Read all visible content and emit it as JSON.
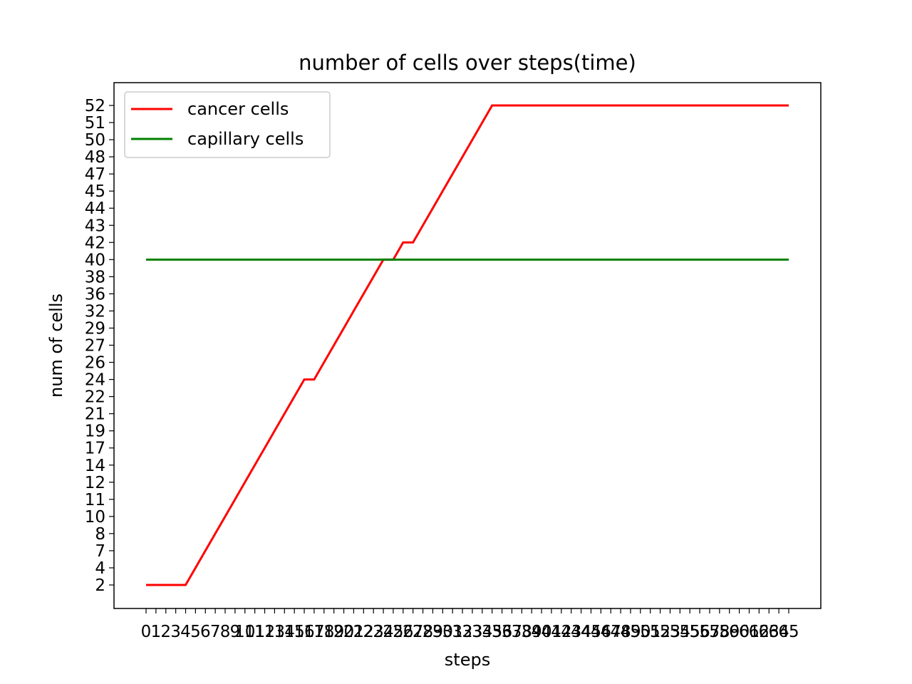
{
  "chart_data": {
    "type": "line",
    "title": "number of cells over steps(time)",
    "xlabel": "steps",
    "ylabel": "num of cells",
    "x": [
      0,
      1,
      2,
      3,
      4,
      5,
      6,
      7,
      8,
      9,
      10,
      11,
      12,
      13,
      14,
      15,
      16,
      17,
      18,
      19,
      20,
      21,
      22,
      23,
      24,
      25,
      26,
      27,
      28,
      29,
      30,
      31,
      32,
      33,
      34,
      35,
      36,
      37,
      38,
      39,
      40,
      41,
      42,
      43,
      44,
      45,
      46,
      47,
      48,
      49,
      50,
      51,
      52,
      53,
      54,
      55,
      56,
      57,
      58,
      59,
      60,
      61,
      62,
      63,
      64,
      65
    ],
    "x_tick_labels": [
      "0",
      "1",
      "2",
      "3",
      "4",
      "5",
      "6",
      "7",
      "8",
      "9",
      "10",
      "11",
      "12",
      "13",
      "14",
      "15",
      "16",
      "17",
      "18",
      "19",
      "20",
      "21",
      "22",
      "23",
      "24",
      "25",
      "26",
      "27",
      "28",
      "29",
      "30",
      "31",
      "32",
      "33",
      "34",
      "35",
      "36",
      "37",
      "38",
      "39",
      "40",
      "41",
      "42",
      "43",
      "44",
      "45",
      "46",
      "47",
      "48",
      "49",
      "50",
      "51",
      "52",
      "53",
      "54",
      "55",
      "56",
      "57",
      "58",
      "59",
      "60",
      "61",
      "62",
      "63",
      "64",
      "65"
    ],
    "y_tick_labels": [
      "2",
      "4",
      "7",
      "8",
      "10",
      "11",
      "12",
      "14",
      "17",
      "19",
      "21",
      "22",
      "24",
      "26",
      "27",
      "29",
      "32",
      "36",
      "38",
      "40",
      "42",
      "43",
      "44",
      "45",
      "47",
      "48",
      "50",
      "51",
      "52"
    ],
    "series": [
      {
        "name": "cancer cells",
        "color": "#ff0000",
        "values": [
          2,
          2,
          2,
          2,
          2,
          4,
          7,
          8,
          10,
          11,
          12,
          14,
          17,
          19,
          21,
          22,
          24,
          24,
          26,
          27,
          29,
          32,
          36,
          38,
          40,
          40,
          42,
          42,
          43,
          44,
          45,
          47,
          48,
          50,
          51,
          52,
          52,
          52,
          52,
          52,
          52,
          52,
          52,
          52,
          52,
          52,
          52,
          52,
          52,
          52,
          52,
          52,
          52,
          52,
          52,
          52,
          52,
          52,
          52,
          52,
          52,
          52,
          52,
          52,
          52,
          52
        ]
      },
      {
        "name": "capillary cells",
        "color": "#008000",
        "values": [
          40,
          40,
          40,
          40,
          40,
          40,
          40,
          40,
          40,
          40,
          40,
          40,
          40,
          40,
          40,
          40,
          40,
          40,
          40,
          40,
          40,
          40,
          40,
          40,
          40,
          40,
          40,
          40,
          40,
          40,
          40,
          40,
          40,
          40,
          40,
          40,
          40,
          40,
          40,
          40,
          40,
          40,
          40,
          40,
          40,
          40,
          40,
          40,
          40,
          40,
          40,
          40,
          40,
          40,
          40,
          40,
          40,
          40,
          40,
          40,
          40,
          40,
          40,
          40,
          40,
          40
        ]
      }
    ],
    "legend_position": "upper-left",
    "grid": false
  }
}
